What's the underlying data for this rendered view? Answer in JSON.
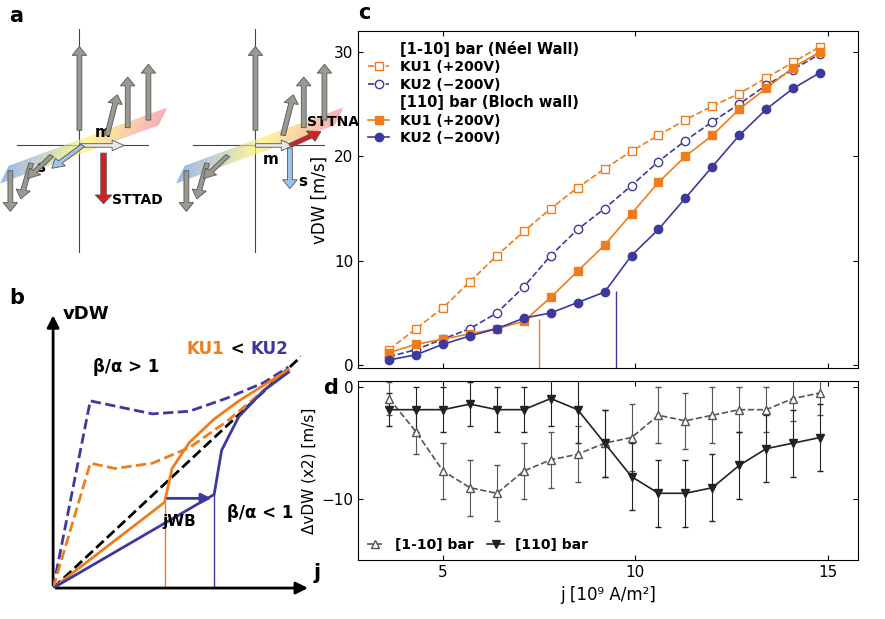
{
  "diagram": {
    "panel": "a",
    "left": {
      "m": "m",
      "s": "s",
      "torque": "STTAD"
    },
    "right": {
      "m": "m",
      "s": "s",
      "torque": "STTNA"
    }
  },
  "chart_data": [
    {
      "panel": "b",
      "type": "line",
      "x_label": "j",
      "y_label": "vDW",
      "tick_labels": false,
      "xlim": [
        0,
        10
      ],
      "ylim": [
        0,
        10
      ],
      "series": [
        {
          "color": "#000000",
          "line_style": "dashed",
          "x": [
            0,
            10
          ],
          "values": [
            0,
            8.9
          ]
        },
        {
          "color": "#3d3a9e",
          "line_style": "dashed",
          "x": [
            0,
            1.5,
            2.5,
            4,
            5.5,
            7,
            8.5,
            9.5
          ],
          "values": [
            0,
            7.2,
            7.0,
            6.7,
            6.8,
            7.3,
            7.9,
            8.5
          ]
        },
        {
          "color": "#f07d1a",
          "line_style": "dashed",
          "x": [
            0,
            1.5,
            2.5,
            4,
            5.5,
            7,
            8.5,
            9.5
          ],
          "values": [
            0,
            4.8,
            4.6,
            4.8,
            5.4,
            6.4,
            7.6,
            8.4
          ]
        },
        {
          "color": "#f07d1a",
          "line_style": "solid",
          "x": [
            0,
            4.5,
            4.8,
            5.5,
            6.5,
            7.5,
            8.5,
            9.5
          ],
          "values": [
            0,
            3.3,
            4.6,
            5.6,
            6.5,
            7.2,
            7.8,
            8.4
          ],
          "drop_line": [
            4.5,
            3.3
          ]
        },
        {
          "color": "#3d3a9e",
          "line_style": "solid",
          "x": [
            0,
            6.5,
            6.8,
            7.5,
            8.5,
            9.5
          ],
          "values": [
            0,
            3.6,
            5.3,
            6.6,
            7.6,
            8.3
          ],
          "drop_line": [
            6.5,
            3.6
          ]
        }
      ],
      "annotations": [
        {
          "parts": [
            {
              "text": "β/α > 1",
              "color": "#000000"
            }
          ]
        },
        {
          "parts": [
            {
              "text": "β/α < 1",
              "color": "#000000"
            }
          ]
        },
        {
          "parts": [
            {
              "text": "KU1",
              "color": "#f07d1a"
            },
            {
              "text": " < ",
              "color": "#000000"
            },
            {
              "text": "KU2",
              "color": "#3d3a9e"
            }
          ]
        }
      ],
      "arrow": {
        "label": "jWB",
        "from": 4.5,
        "to": 6.5,
        "y": 3.45,
        "color": "#3d3a9e"
      }
    },
    {
      "panel": "c",
      "type": "line",
      "y_label": "vDW [m/s]",
      "tick_labels": "y",
      "xlim": [
        2.8,
        15.8
      ],
      "xticks": [
        5,
        10,
        15
      ],
      "ylim": [
        -0.3,
        32
      ],
      "yticks": [
        0,
        10,
        20,
        30
      ],
      "legend": "upper left",
      "series": [
        {
          "name": "KU1 (+200V)",
          "group": "[1-10] bar (Néel Wall)",
          "color": "#f07d1a",
          "marker": "square_open",
          "line_style": "dashed",
          "x": [
            3.6,
            4.3,
            5.0,
            5.7,
            6.4,
            7.1,
            7.8,
            8.5,
            9.2,
            9.9,
            10.6,
            11.3,
            12.0,
            12.7,
            13.4,
            14.1,
            14.8
          ],
          "values": [
            1.5,
            3.5,
            5.5,
            8,
            10.5,
            12.8,
            15,
            17,
            18.8,
            20.5,
            22,
            23.5,
            24.8,
            26,
            27.5,
            29,
            30.5
          ]
        },
        {
          "name": "KU2 (−200V)",
          "group": "[1-10] bar (Néel Wall)",
          "color": "#3d3a9e",
          "marker": "circle_open",
          "line_style": "dashed",
          "x": [
            3.6,
            4.3,
            5.0,
            5.7,
            6.4,
            7.1,
            7.8,
            8.5,
            9.2,
            9.9,
            10.6,
            11.3,
            12.0,
            12.7,
            13.4,
            14.1,
            14.8
          ],
          "values": [
            0.8,
            1.5,
            2.5,
            3.5,
            5,
            7.5,
            10.5,
            13,
            15,
            17.2,
            19.5,
            21.5,
            23.3,
            25,
            26.8,
            28.3,
            29.8
          ]
        },
        {
          "name": "KU1 (+200V)",
          "group": "[110] bar (Bloch wall)",
          "color": "#f07d1a",
          "marker": "square",
          "line_style": "solid",
          "x": [
            3.6,
            4.3,
            5.0,
            5.7,
            6.4,
            7.1,
            7.8,
            8.5,
            9.2,
            9.9,
            10.6,
            11.3,
            12.0,
            12.7,
            13.4,
            14.1,
            14.8
          ],
          "values": [
            1.2,
            2,
            2.5,
            3,
            3.5,
            4.2,
            6.5,
            9,
            11.5,
            14.5,
            17.5,
            20,
            22,
            24.5,
            26.5,
            28.5,
            30
          ],
          "drop_line": [
            7.5,
            4.4
          ]
        },
        {
          "name": "KU2 (−200V)",
          "group": "[110] bar (Bloch wall)",
          "color": "#3d3a9e",
          "marker": "circle",
          "line_style": "solid",
          "x": [
            3.6,
            4.3,
            5.0,
            5.7,
            6.4,
            7.1,
            7.8,
            8.5,
            9.2,
            9.9,
            10.6,
            11.3,
            12.0,
            12.7,
            13.4,
            14.1,
            14.8
          ],
          "values": [
            0.5,
            1,
            2,
            2.8,
            3.5,
            4.5,
            5,
            6,
            7,
            10.5,
            13,
            16,
            19,
            22,
            24.5,
            26.5,
            28
          ],
          "drop_line": [
            9.5,
            7.1
          ]
        }
      ]
    },
    {
      "panel": "d",
      "type": "line",
      "x_label": "j [10⁹ A/m²]",
      "y_label": "ΔvDW (x2) [m/s]",
      "xlim": [
        2.8,
        15.8
      ],
      "xticks": [
        5,
        10,
        15
      ],
      "ylim": [
        -15.5,
        0.6
      ],
      "yticks": [
        {
          "value": -10,
          "label": "−10"
        },
        0
      ],
      "legend": "lower left",
      "series": [
        {
          "name": "[1-10] bar",
          "color": "#555555",
          "marker": "triangle_up_open",
          "line_style": "dashed",
          "x": [
            3.6,
            4.3,
            5.0,
            5.7,
            6.4,
            7.1,
            7.8,
            8.5,
            9.2,
            9.9,
            10.6,
            11.3,
            12.0,
            12.7,
            13.4,
            14.1,
            14.8
          ],
          "values": [
            -1,
            -4,
            -7.5,
            -9,
            -9.5,
            -7.5,
            -6.5,
            -6,
            -5,
            -4.5,
            -2.5,
            -3,
            -2.5,
            -2,
            -2,
            -1,
            -0.5
          ],
          "errors": [
            1.5,
            2,
            2.5,
            2.5,
            2.5,
            2.5,
            2.5,
            2.5,
            3,
            3,
            2.5,
            2.5,
            2.5,
            2,
            2,
            2,
            2
          ]
        },
        {
          "name": "[110] bar",
          "color": "#222222",
          "marker": "triangle_down",
          "line_style": "solid",
          "x": [
            3.6,
            4.3,
            5.0,
            5.7,
            6.4,
            7.1,
            7.8,
            8.5,
            9.2,
            9.9,
            10.6,
            11.3,
            12.0,
            12.7,
            13.4,
            14.1,
            14.8
          ],
          "values": [
            -2,
            -2,
            -2,
            -1.5,
            -2,
            -2,
            -1,
            -2,
            -5,
            -8,
            -9.5,
            -9.5,
            -9,
            -7,
            -5.5,
            -5,
            -4.5
          ],
          "errors": [
            1.5,
            2,
            2,
            2,
            2,
            2,
            2.5,
            3,
            3,
            3,
            3,
            3,
            3,
            3,
            3,
            3,
            3
          ]
        }
      ]
    }
  ]
}
